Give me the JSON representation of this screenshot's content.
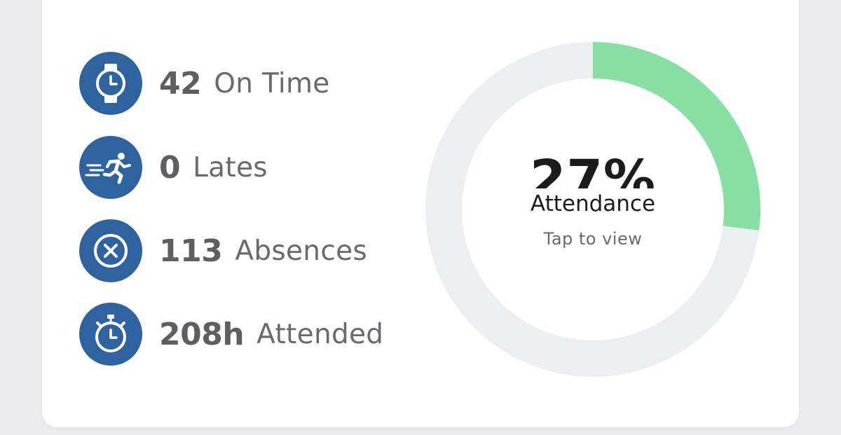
{
  "stats": [
    {
      "icon": "watch-icon",
      "value": "42",
      "label": "On Time"
    },
    {
      "icon": "running-person-icon",
      "value": "0",
      "label": "Lates"
    },
    {
      "icon": "x-circle-icon",
      "value": "113",
      "label": "Absences"
    },
    {
      "icon": "stopwatch-icon",
      "value": "208h",
      "label": "Attended"
    }
  ],
  "donut": {
    "percent_text": "27%",
    "fraction": 0.27,
    "label": "Attendance",
    "hint": "Tap to view",
    "fill_color": "#88dfa6",
    "track_color": "#eceef1"
  },
  "colors": {
    "icon_bg": "#2f63a0"
  }
}
